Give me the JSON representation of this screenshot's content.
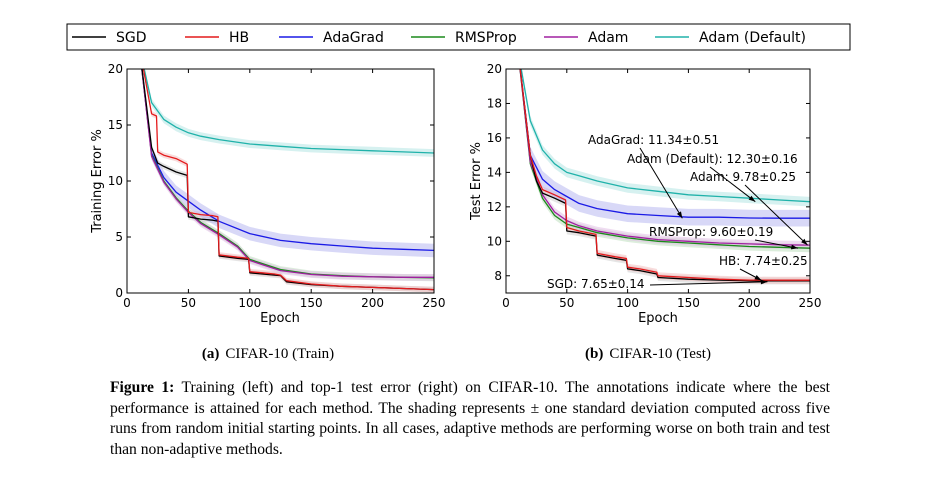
{
  "chart_data": [
    {
      "type": "line",
      "subtitle_tag": "(a)",
      "subtitle": "CIFAR-10 (Train)",
      "xlabel": "Epoch",
      "ylabel": "Training Error %",
      "xlim": [
        0,
        250
      ],
      "ylim": [
        0,
        20
      ],
      "xticks": [
        "0",
        "50",
        "100",
        "150",
        "200",
        "250"
      ],
      "yticks": [
        "0",
        "5",
        "10",
        "15",
        "20"
      ],
      "series": [
        {
          "name": "SGD",
          "color": "#000000",
          "x": [
            10,
            20,
            25,
            30,
            40,
            49,
            50,
            60,
            70,
            74,
            75,
            90,
            99,
            100,
            110,
            120,
            125,
            130,
            150,
            175,
            200,
            225,
            250
          ],
          "y": [
            22,
            13,
            11.6,
            11.3,
            10.8,
            10.5,
            6.8,
            6.6,
            6.5,
            6.4,
            3.3,
            3.1,
            3.0,
            1.8,
            1.7,
            1.6,
            1.55,
            1.0,
            0.75,
            0.6,
            0.5,
            0.4,
            0.3
          ]
        },
        {
          "name": "HB",
          "color": "#e41a1c",
          "x": [
            10,
            20,
            24,
            25,
            30,
            40,
            49,
            50,
            60,
            70,
            74,
            75,
            90,
            99,
            100,
            110,
            120,
            125,
            130,
            150,
            175,
            200,
            225,
            250
          ],
          "y": [
            22,
            16,
            15.8,
            12.6,
            12.3,
            12.0,
            11.5,
            7.2,
            7.0,
            6.9,
            6.8,
            3.4,
            3.2,
            3.1,
            1.9,
            1.8,
            1.7,
            1.6,
            1.1,
            0.8,
            0.6,
            0.5,
            0.4,
            0.3
          ]
        },
        {
          "name": "AdaGrad",
          "color": "#1a1ae6",
          "x": [
            10,
            20,
            30,
            40,
            50,
            60,
            75,
            100,
            125,
            150,
            175,
            200,
            225,
            250
          ],
          "y": [
            22,
            12.5,
            10.3,
            9.0,
            8.2,
            7.4,
            6.4,
            5.3,
            4.7,
            4.4,
            4.2,
            4.0,
            3.9,
            3.8
          ]
        },
        {
          "name": "RMSProp",
          "color": "#1b8a1b",
          "x": [
            10,
            20,
            30,
            40,
            50,
            60,
            75,
            90,
            100,
            125,
            150,
            175,
            200,
            225,
            250
          ],
          "y": [
            22,
            12.3,
            10.0,
            8.5,
            7.3,
            6.3,
            5.3,
            4.2,
            3.0,
            2.1,
            1.7,
            1.55,
            1.45,
            1.4,
            1.35
          ]
        },
        {
          "name": "Adam",
          "color": "#a020a0",
          "x": [
            10,
            20,
            30,
            40,
            50,
            60,
            75,
            90,
            100,
            125,
            150,
            175,
            200,
            225,
            250
          ],
          "y": [
            22,
            12.2,
            9.9,
            8.4,
            7.2,
            6.2,
            5.2,
            4.1,
            2.9,
            2.0,
            1.65,
            1.5,
            1.45,
            1.4,
            1.4
          ]
        },
        {
          "name": "Adam (Default)",
          "color": "#20b2aa",
          "x": [
            10,
            20,
            30,
            40,
            50,
            60,
            75,
            100,
            125,
            150,
            175,
            200,
            225,
            250
          ],
          "y": [
            22,
            17,
            15.5,
            14.8,
            14.3,
            14.0,
            13.7,
            13.3,
            13.1,
            12.9,
            12.8,
            12.7,
            12.6,
            12.5
          ]
        }
      ]
    },
    {
      "type": "line",
      "subtitle_tag": "(b)",
      "subtitle": "CIFAR-10 (Test)",
      "xlabel": "Epoch",
      "ylabel": "Test Error %",
      "xlim": [
        0,
        250
      ],
      "ylim": [
        7,
        20
      ],
      "xticks": [
        "0",
        "50",
        "100",
        "150",
        "200",
        "250"
      ],
      "yticks": [
        "8",
        "10",
        "12",
        "14",
        "16",
        "18",
        "20"
      ],
      "series": [
        {
          "name": "SGD",
          "color": "#000000",
          "x": [
            10,
            20,
            25,
            30,
            40,
            49,
            50,
            60,
            74,
            75,
            90,
            99,
            100,
            110,
            124,
            125,
            150,
            175,
            200,
            225,
            250
          ],
          "y": [
            21,
            15,
            13.5,
            12.8,
            12.5,
            12.2,
            10.6,
            10.5,
            10.3,
            9.2,
            9.0,
            8.9,
            8.4,
            8.3,
            8.1,
            7.9,
            7.8,
            7.75,
            7.7,
            7.7,
            7.7
          ]
        },
        {
          "name": "HB",
          "color": "#e41a1c",
          "x": [
            10,
            20,
            25,
            30,
            40,
            49,
            50,
            60,
            74,
            75,
            90,
            99,
            100,
            110,
            124,
            125,
            150,
            175,
            200,
            225,
            250
          ],
          "y": [
            21,
            15,
            13.8,
            13.0,
            12.7,
            12.4,
            10.8,
            10.6,
            10.4,
            9.3,
            9.1,
            9.0,
            8.5,
            8.4,
            8.2,
            8.0,
            7.9,
            7.8,
            7.75,
            7.74,
            7.74
          ]
        },
        {
          "name": "AdaGrad",
          "color": "#1a1ae6",
          "x": [
            10,
            20,
            30,
            40,
            50,
            60,
            75,
            100,
            125,
            150,
            175,
            200,
            225,
            250
          ],
          "y": [
            21,
            15,
            13.6,
            13.0,
            12.6,
            12.2,
            11.9,
            11.6,
            11.5,
            11.4,
            11.4,
            11.35,
            11.34,
            11.34
          ]
        },
        {
          "name": "RMSProp",
          "color": "#1b8a1b",
          "x": [
            10,
            20,
            30,
            40,
            50,
            60,
            75,
            100,
            125,
            150,
            175,
            200,
            225,
            250
          ],
          "y": [
            21,
            14.5,
            12.5,
            11.5,
            11.0,
            10.8,
            10.5,
            10.2,
            10.0,
            9.9,
            9.8,
            9.7,
            9.65,
            9.6
          ]
        },
        {
          "name": "Adam",
          "color": "#a020a0",
          "x": [
            10,
            20,
            30,
            40,
            50,
            60,
            75,
            100,
            125,
            150,
            175,
            200,
            225,
            250
          ],
          "y": [
            21,
            14.6,
            12.7,
            11.7,
            11.2,
            10.9,
            10.6,
            10.3,
            10.1,
            10.0,
            9.9,
            9.85,
            9.8,
            9.78
          ]
        },
        {
          "name": "Adam (Default)",
          "color": "#20b2aa",
          "x": [
            10,
            20,
            30,
            40,
            50,
            60,
            75,
            100,
            125,
            150,
            175,
            200,
            225,
            250
          ],
          "y": [
            21,
            17,
            15.3,
            14.5,
            14.0,
            13.8,
            13.5,
            13.1,
            12.9,
            12.7,
            12.6,
            12.5,
            12.4,
            12.3
          ]
        }
      ],
      "annotations": [
        {
          "text": "AdaGrad: 11.34±0.51",
          "target": [
            145,
            11.34
          ]
        },
        {
          "text": "Adam (Default): 12.30±0.16",
          "target": [
            205,
            12.3
          ]
        },
        {
          "text": "Adam: 9.78±0.25",
          "target": [
            248,
            9.78
          ]
        },
        {
          "text": "RMSProp: 9.60±0.19",
          "target": [
            240,
            9.6
          ]
        },
        {
          "text": "HB: 7.74±0.25",
          "target": [
            210,
            7.74
          ]
        },
        {
          "text": "SGD: 7.65±0.14",
          "target": [
            215,
            7.65
          ]
        }
      ]
    }
  ],
  "legend": {
    "placement": "top",
    "entries": [
      "SGD",
      "HB",
      "AdaGrad",
      "RMSProp",
      "Adam",
      "Adam (Default)"
    ]
  },
  "caption": {
    "label": "Figure 1:",
    "text": "Training (left) and top-1 test error (right) on CIFAR-10. The annotations indicate where the best performance is attained for each method. The shading represents ± one standard deviation computed across five runs from random initial starting points. In all cases, adaptive methods are performing worse on both train and test than non-adaptive methods."
  }
}
